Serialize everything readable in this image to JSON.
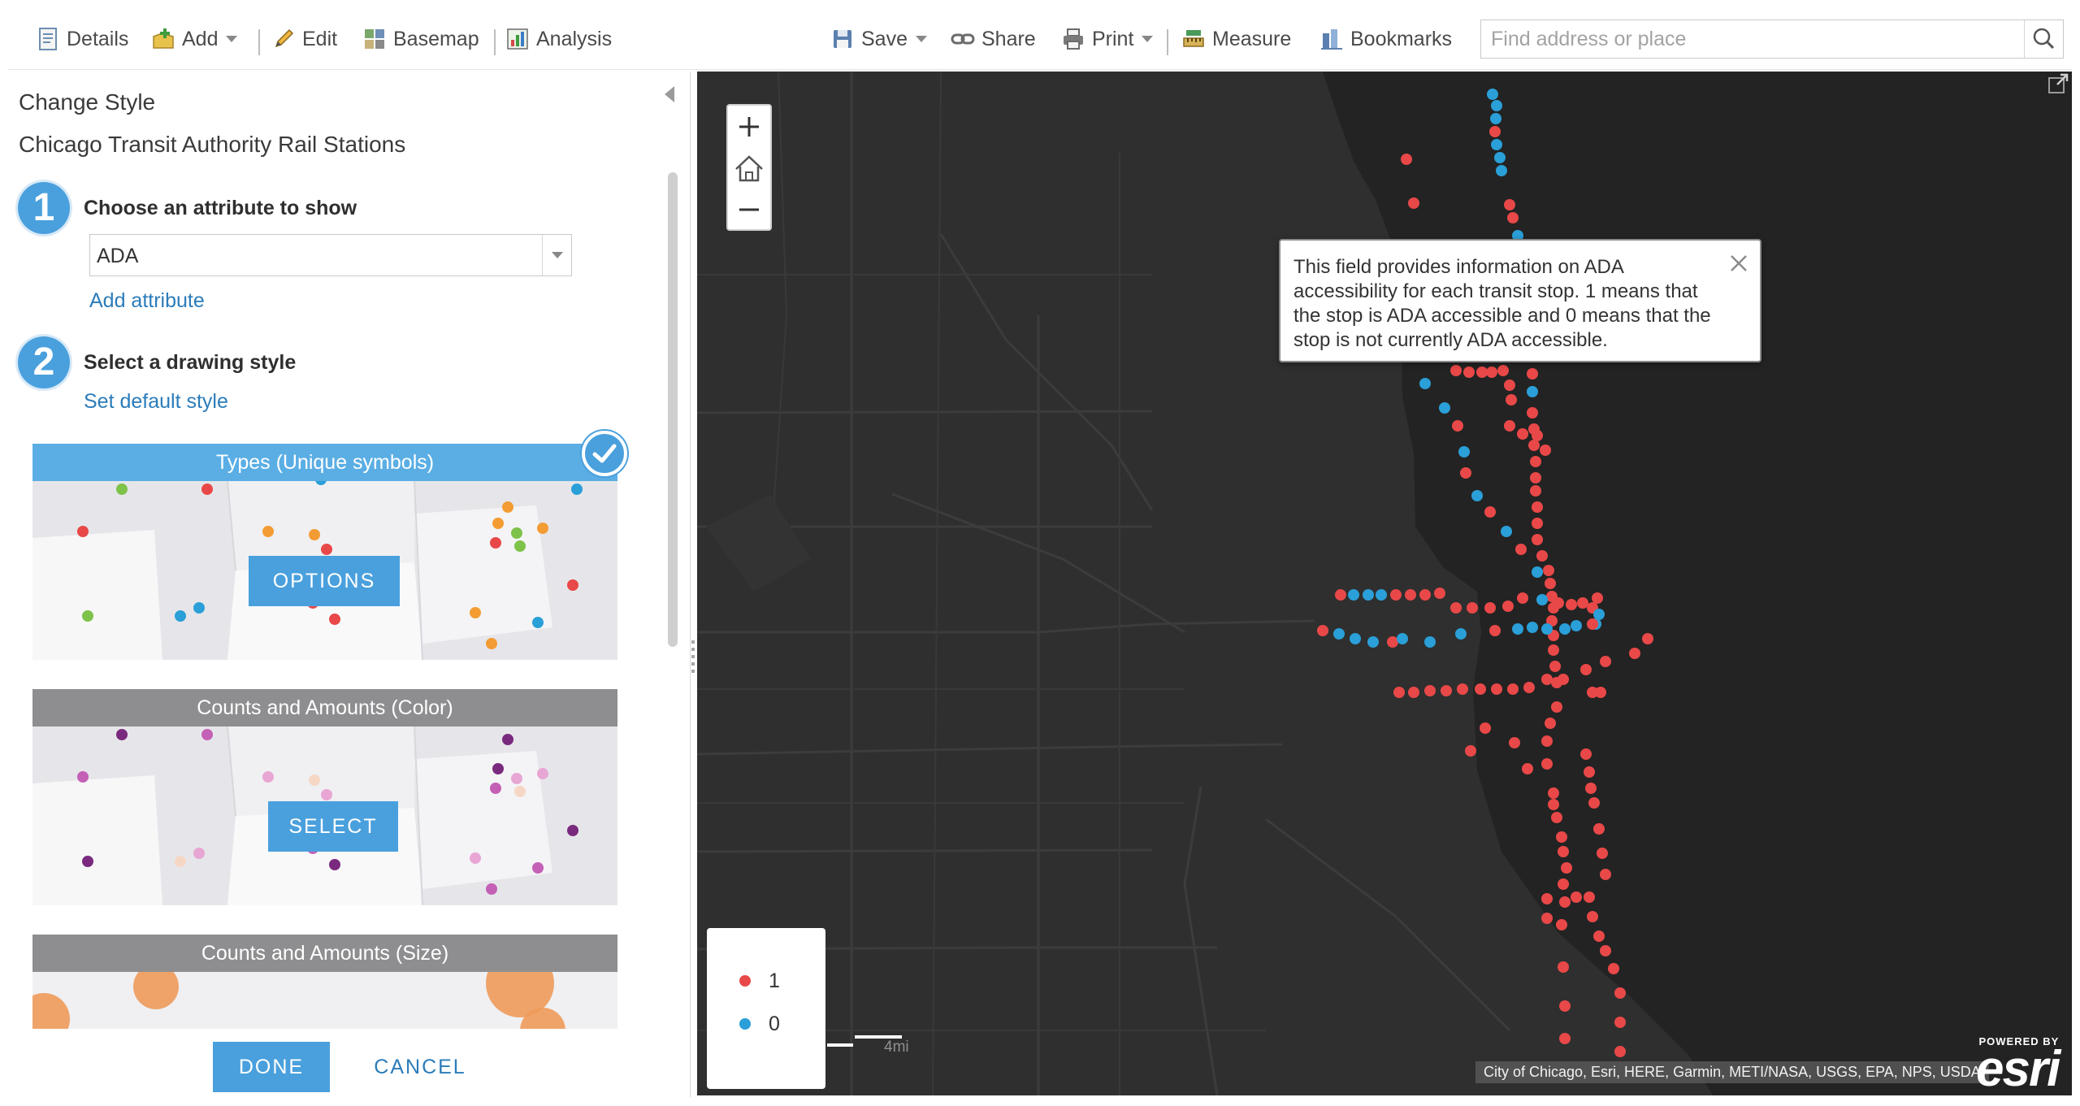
{
  "toolbar": {
    "details": "Details",
    "add": "Add",
    "edit": "Edit",
    "basemap": "Basemap",
    "analysis": "Analysis",
    "save": "Save",
    "share": "Share",
    "print": "Print",
    "measure": "Measure",
    "bookmarks": "Bookmarks",
    "search_placeholder": "Find address or place"
  },
  "panel": {
    "title": "Change Style",
    "layer_name": "Chicago Transit Authority Rail Stations",
    "step1": {
      "number": "1",
      "label": "Choose an attribute to show",
      "selected_attribute": "ADA",
      "add_attribute": "Add attribute"
    },
    "step2": {
      "number": "2",
      "label": "Select a drawing style",
      "set_default": "Set default style"
    },
    "styles": [
      {
        "title": "Types (Unique symbols)",
        "button": "OPTIONS",
        "selected": true
      },
      {
        "title": "Counts and Amounts (Color)",
        "button": "SELECT",
        "selected": false
      },
      {
        "title": "Counts and Amounts (Size)",
        "button": "",
        "selected": false
      }
    ],
    "done": "DONE",
    "cancel": "CANCEL"
  },
  "tooltip": {
    "text": "This field provides information on ADA accessibility for each transit stop. 1 means that the stop is ADA accessible and 0 means that the stop is not currently ADA accessible."
  },
  "legend": {
    "items": [
      {
        "label": "1",
        "color": "#e94848"
      },
      {
        "label": "0",
        "color": "#2a9fd8"
      }
    ]
  },
  "map": {
    "scale_label": "4mi",
    "attribution": "City of Chicago, Esri, HERE, Garmin, METI/NASA, USGS, EPA, NPS, USDA",
    "powered_by": "POWERED BY",
    "esri_logo": "esri"
  },
  "colors": {
    "accent": "#4aa0dd",
    "link": "#2b7cba",
    "ada_yes": "#e94848",
    "ada_no": "#2a9fd8",
    "map_land": "#2f2f2f",
    "map_water": "#242424"
  }
}
